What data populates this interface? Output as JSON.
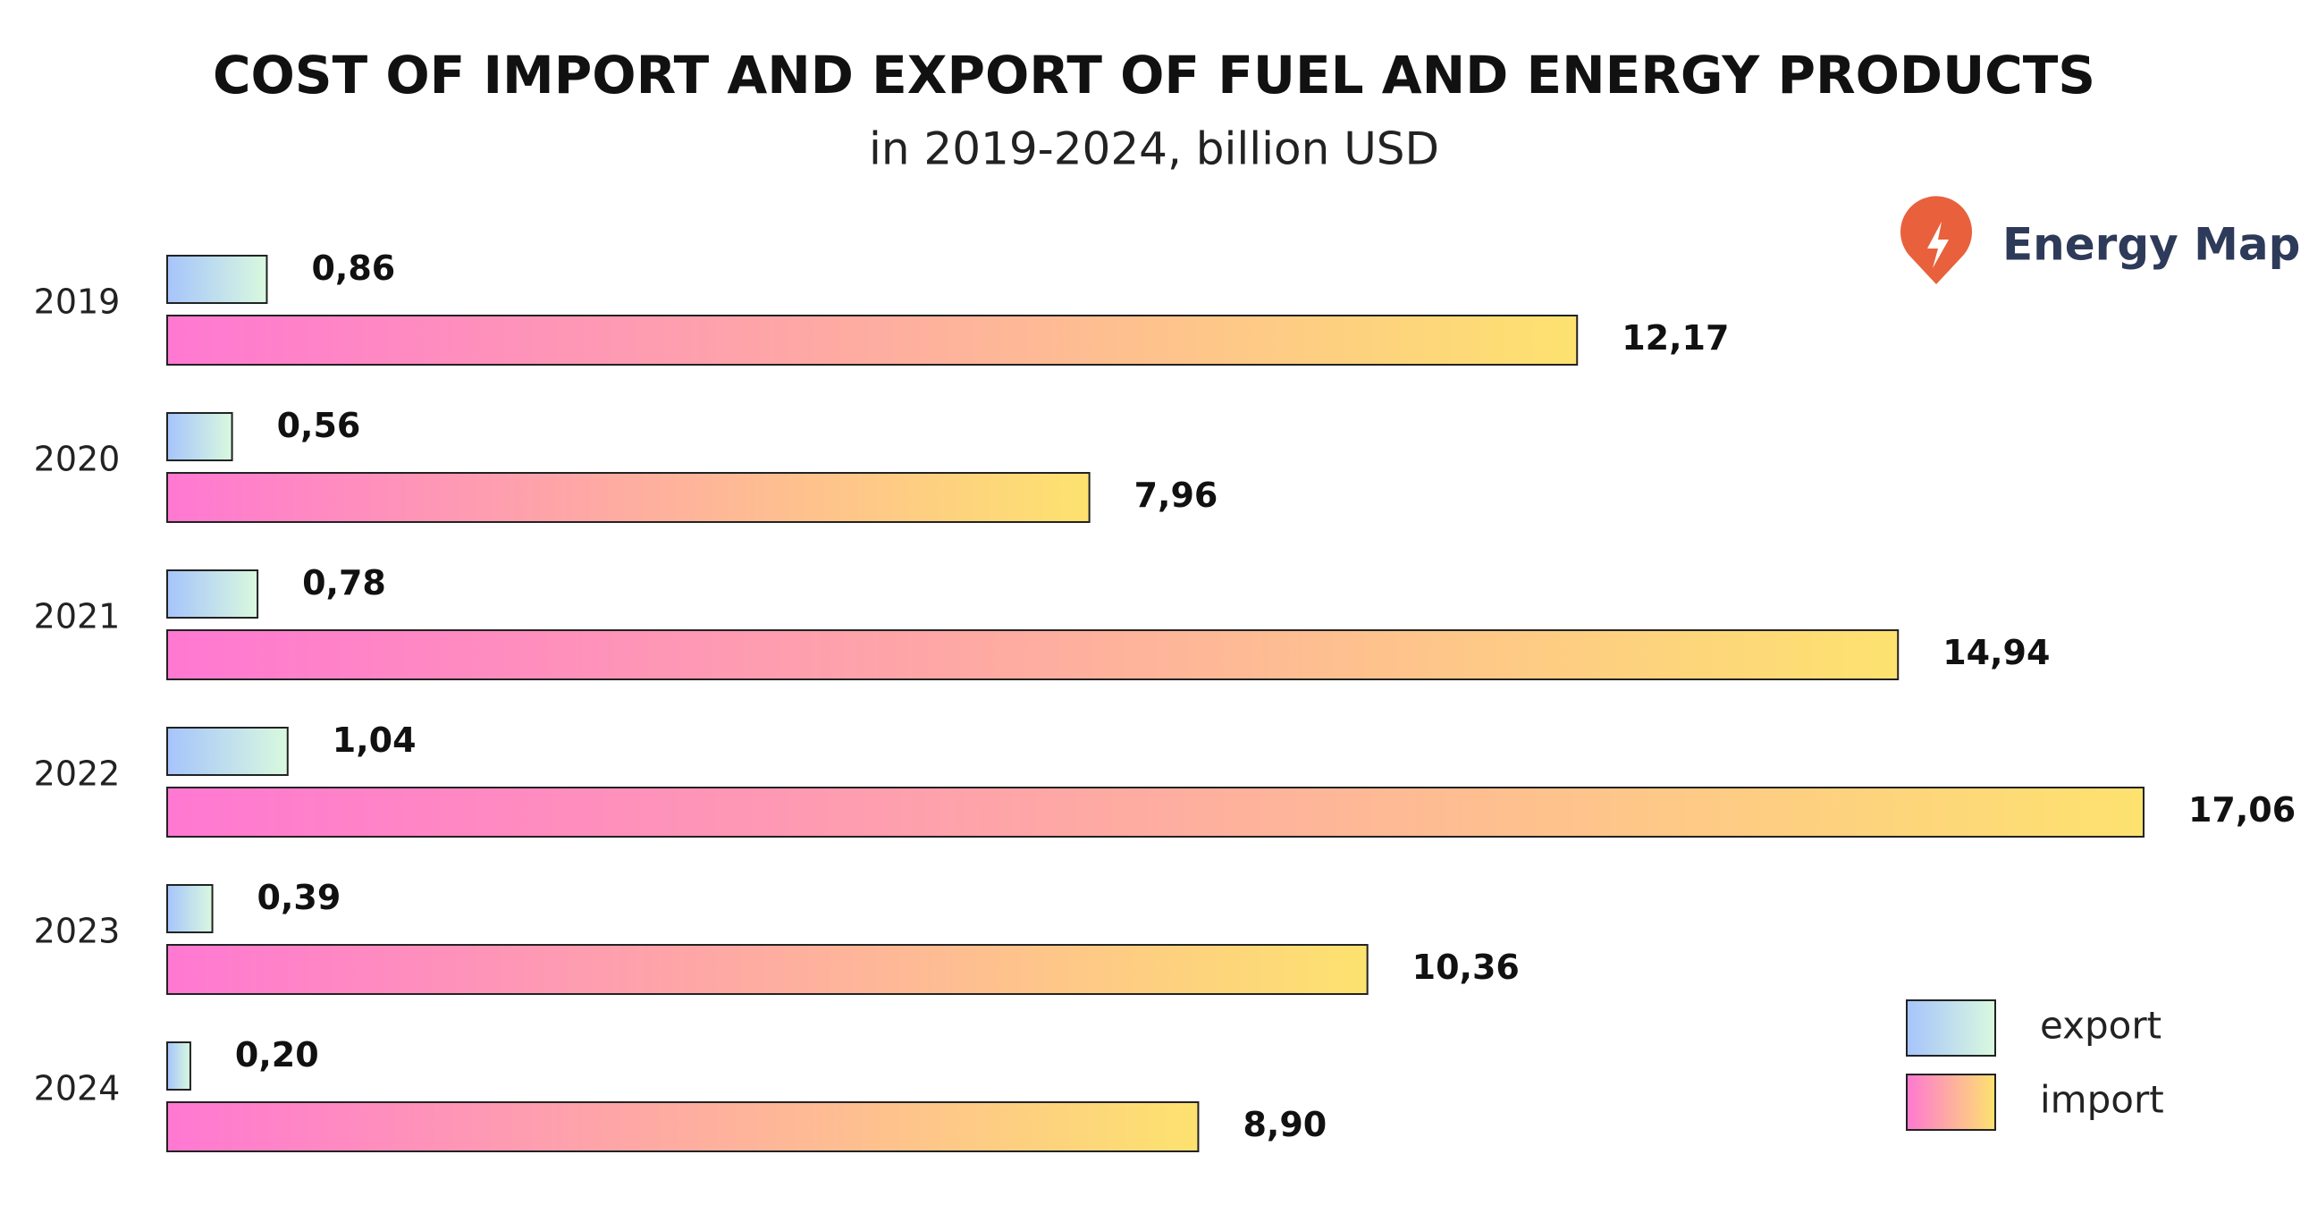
{
  "chart_data": {
    "type": "grouped-bar-horizontal",
    "title": "COST OF IMPORT AND EXPORT OF FUEL AND ENERGY PRODUCTS",
    "subtitle": "in 2019-2024, billion USD",
    "brand": "Energy Map",
    "categories": [
      "2019",
      "2020",
      "2021",
      "2022",
      "2023",
      "2024"
    ],
    "series": [
      {
        "name": "export",
        "color": [
          "#a6c4fb",
          "#d9f9df"
        ],
        "values": [
          0.86,
          0.56,
          0.78,
          1.04,
          0.39,
          0.2
        ],
        "value_labels": [
          "0,86",
          "0,56",
          "0,78",
          "1,04",
          "0,39",
          "0,20"
        ]
      },
      {
        "name": "import",
        "color": [
          "#ff78d2",
          "#fde26f"
        ],
        "values": [
          12.17,
          7.96,
          14.94,
          17.06,
          10.36,
          8.9
        ],
        "value_labels": [
          "12,17",
          "7,96",
          "14,94",
          "17,06",
          "10,36",
          "8,90"
        ]
      }
    ],
    "xlim": [
      0,
      17.5
    ]
  }
}
